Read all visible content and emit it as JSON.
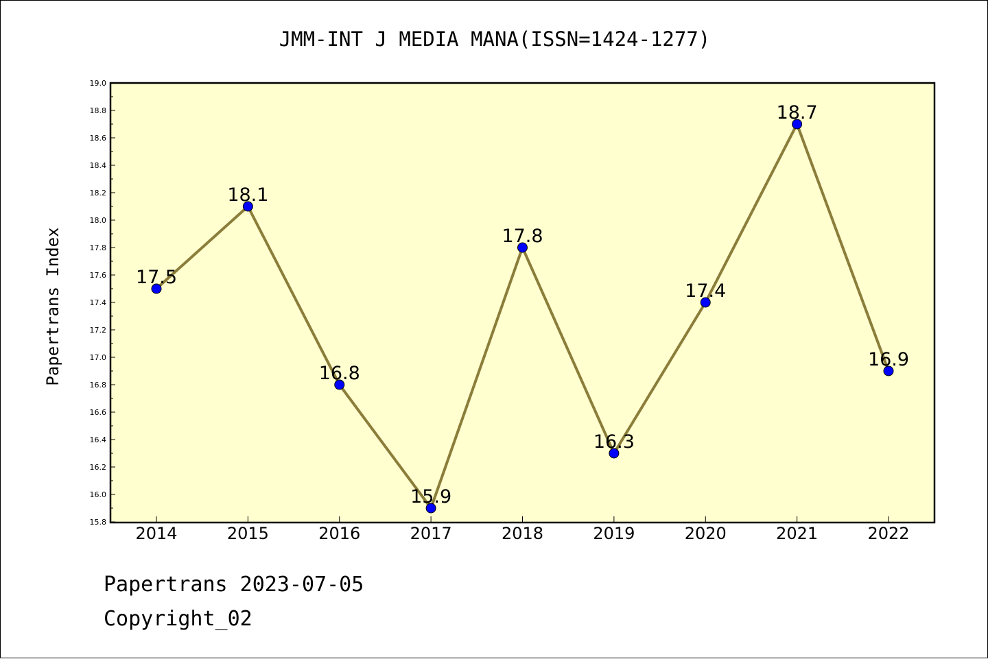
{
  "chart_data": {
    "type": "line",
    "title": "JMM-INT J MEDIA MANA(ISSN=1424-1277)",
    "xlabel": "",
    "ylabel": "Papertrans Index",
    "categories": [
      "2014",
      "2015",
      "2016",
      "2017",
      "2018",
      "2019",
      "2020",
      "2021",
      "2022"
    ],
    "series": [
      {
        "values": [
          17.5,
          18.1,
          16.8,
          15.9,
          17.8,
          16.3,
          17.4,
          18.7,
          16.9
        ],
        "data_labels": [
          "17.5",
          "18.1",
          "16.8",
          "15.9",
          "17.8",
          "16.3",
          "17.4",
          "18.7",
          "16.9"
        ]
      }
    ],
    "ylim": [
      15.8,
      19.0
    ],
    "yticks": [
      "15.8",
      "16.0",
      "16.2",
      "16.4",
      "16.6",
      "16.8",
      "17.0",
      "17.2",
      "17.4",
      "17.6",
      "17.8",
      "18.0",
      "18.2",
      "18.4",
      "18.6",
      "18.8",
      "19.0"
    ],
    "grid": false,
    "colors": {
      "plot_background": "#ffffd0",
      "line": "#8b7d3a",
      "marker": "#0000ff"
    }
  },
  "footer": {
    "date_line": "Papertrans 2023-07-05",
    "copyright": "Copyright_02"
  }
}
